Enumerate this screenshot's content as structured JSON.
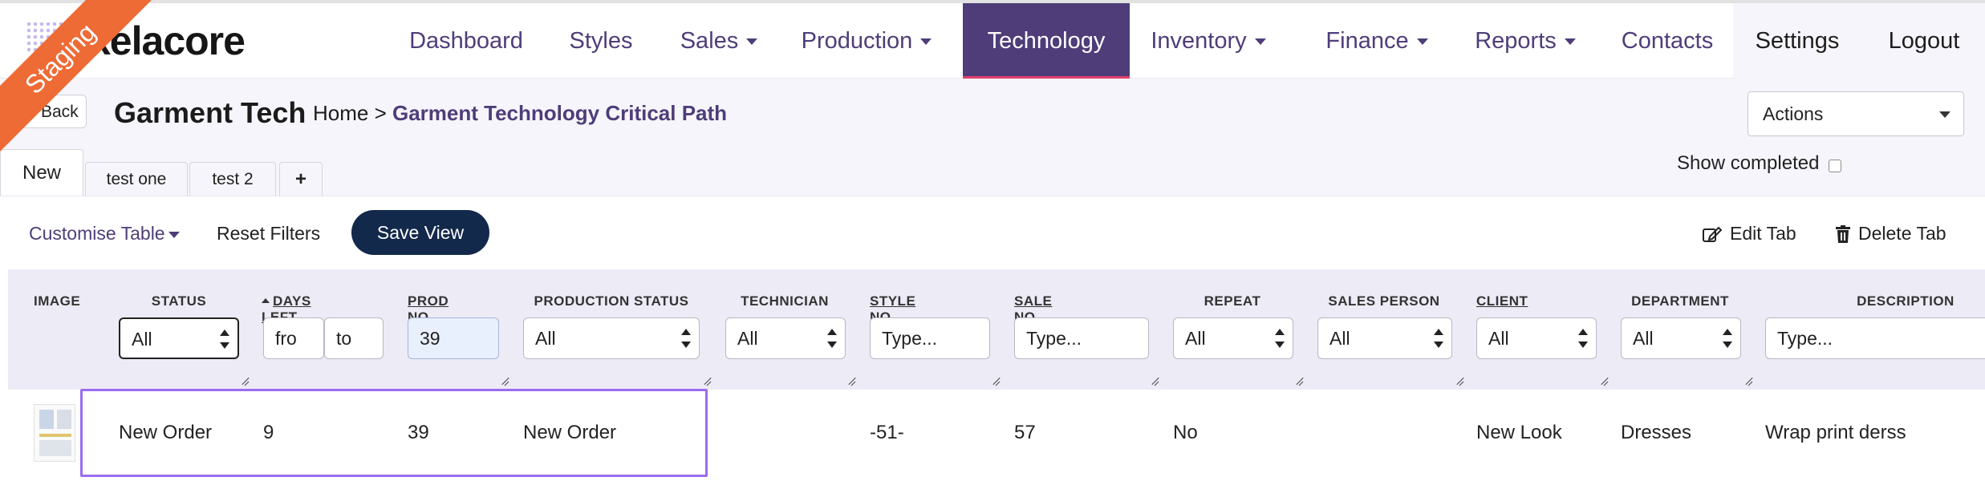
{
  "brand": {
    "logo_text": "kelacore",
    "badge": "Staging"
  },
  "nav": {
    "items": [
      {
        "label": "Dashboard"
      },
      {
        "label": "Styles"
      },
      {
        "label": "Sales"
      },
      {
        "label": "Production"
      },
      {
        "label": "Technology"
      },
      {
        "label": "Inventory"
      },
      {
        "label": "Finance"
      },
      {
        "label": "Reports"
      },
      {
        "label": "Contacts"
      }
    ],
    "active": "Technology",
    "settings": "Settings",
    "logout": "Logout"
  },
  "header": {
    "back_label": "Back",
    "title": "Garment Tech",
    "breadcrumb_home": "Home >",
    "breadcrumb_current": "Garment Technology Critical Path",
    "actions_label": "Actions"
  },
  "tabs": [
    {
      "label": "New"
    },
    {
      "label": "test one"
    },
    {
      "label": "test 2"
    },
    {
      "label": "+"
    }
  ],
  "show_completed": {
    "label": "Show completed",
    "checked": false
  },
  "toolbar": {
    "customise": "Customise Table",
    "reset": "Reset Filters",
    "save_view": "Save View",
    "edit_tab": "Edit Tab",
    "delete_tab": "Delete Tab"
  },
  "columns": {
    "image": "IMAGE",
    "status": "STATUS",
    "days_left": "DAYS LEFT",
    "prod_no": "PROD NO",
    "production_status": "PRODUCTION STATUS",
    "technician": "TECHNICIAN",
    "style_no": "STYLE NO",
    "sale_no": "SALE NO",
    "repeat": "REPEAT",
    "sales_person": "SALES PERSON",
    "client": "CLIENT",
    "department": "DEPARTMENT",
    "description": "DESCRIPTION"
  },
  "filters": {
    "status": "All",
    "days_from_placeholder": "fro",
    "days_to_placeholder": "to",
    "prod_no": "39",
    "production_status": "All",
    "technician": "All",
    "style_no_placeholder": "Type...",
    "sale_no_placeholder": "Type...",
    "repeat": "All",
    "sales_person": "All",
    "client": "All",
    "department": "All",
    "description_placeholder": "Type..."
  },
  "rows": [
    {
      "status": "New Order",
      "days_left": "9",
      "prod_no": "39",
      "production_status": "New Order",
      "technician": "",
      "style_no": "-51-",
      "sale_no": "57",
      "repeat": "No",
      "sales_person": "",
      "client": "New Look",
      "department": "Dresses",
      "description": "Wrap print derss"
    }
  ],
  "colors": {
    "accent": "#4e3d79",
    "staging": "#ee6b35",
    "save_button": "#13294b",
    "header_bg": "#ecebf6",
    "row_highlight": "#9b6cf0"
  }
}
